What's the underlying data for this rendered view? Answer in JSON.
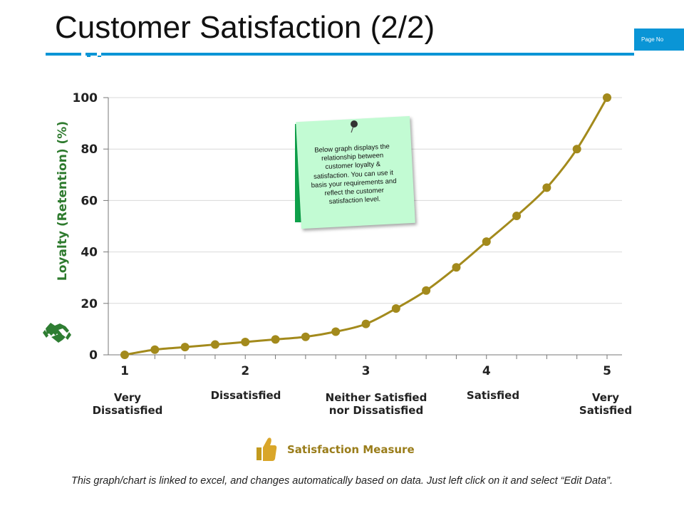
{
  "header": {
    "title": "Customer Satisfaction (2/2)",
    "page_no": "Page No",
    "accent_color": "#0a95d6"
  },
  "note": {
    "text": "Below graph displays the relationship between customer loyalty & satisfaction. You can use it basis your requirements and reflect the customer satisfaction level.",
    "color": "#c2fbd3",
    "back_color": "#0ea04a",
    "icon": "pushpin-icon"
  },
  "footer": {
    "text": "This graph/chart is linked to excel, and changes automatically based on data. Just left click on it and select “Edit Data”."
  },
  "chart_data": {
    "type": "line",
    "ylabel": "Loyalty (Retention) (%)",
    "xlabel": "Satisfaction Measure",
    "ylim": [
      0,
      100
    ],
    "yticks": [
      0,
      20,
      40,
      60,
      80,
      100
    ],
    "xlim": [
      1,
      5
    ],
    "xticks": [
      1,
      2,
      3,
      4,
      5
    ],
    "x_categories": [
      "Very Dissatisfied",
      "Dissatisfied",
      "Neither Satisfied nor Dissatisfied",
      "Satisfied",
      "Very Satisfied"
    ],
    "grid": true,
    "line_color": "#a38a1c",
    "axis_label_color": "#2d7a2d",
    "x_icon": "thumbs-up-icon",
    "y_icon": "handshake-icon",
    "series": [
      {
        "x": [
          1,
          1.25,
          1.5,
          1.75,
          2,
          2.25,
          2.5,
          2.75,
          3,
          3.25,
          3.5,
          3.75,
          4,
          4.25,
          4.5,
          4.75,
          5
        ],
        "y": [
          0,
          2,
          3,
          4,
          5,
          6,
          7,
          9,
          12,
          18,
          25,
          34,
          44,
          54,
          65,
          80,
          100
        ]
      }
    ]
  }
}
